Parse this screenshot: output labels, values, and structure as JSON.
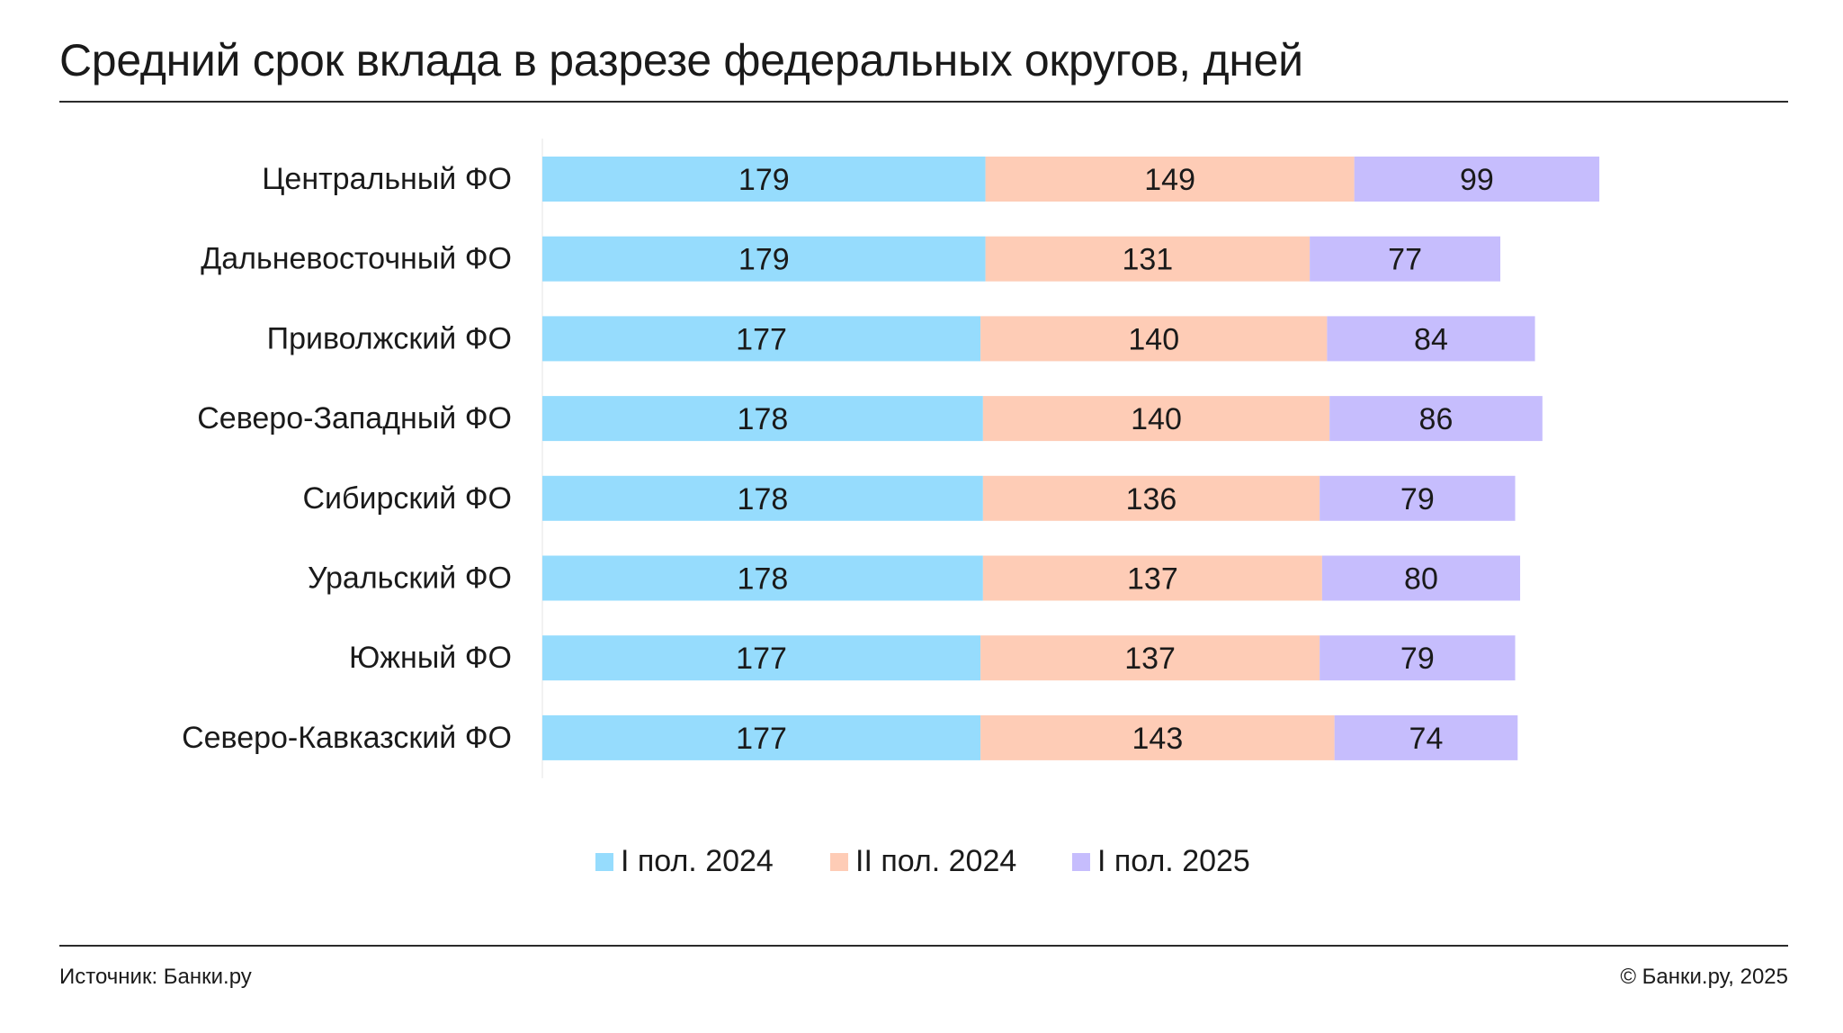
{
  "title": "Средний срок вклада в разрезе федеральных округов, дней",
  "source": "Источник: Банки.ру",
  "copyright": "© Банки.ру, 2025",
  "chart_data": {
    "type": "bar",
    "orientation": "horizontal",
    "stacked": true,
    "title": "Средний срок вклада в разрезе федеральных округов, дней",
    "categories": [
      "Центральный ФО",
      "Дальневосточный ФО",
      "Приволжский ФО",
      "Северо-Западный ФО",
      "Сибирский ФО",
      "Уральский ФО",
      "Южный ФО",
      "Северо-Кавказский ФО"
    ],
    "series": [
      {
        "name": "I пол. 2024",
        "color": "#96DCFD",
        "values": [
          179,
          179,
          177,
          178,
          178,
          178,
          177,
          177
        ]
      },
      {
        "name": "II пол. 2024",
        "color": "#FECCB6",
        "values": [
          149,
          131,
          140,
          140,
          136,
          137,
          137,
          143
        ]
      },
      {
        "name": "I пол. 2025",
        "color": "#C6BDFD",
        "values": [
          99,
          77,
          84,
          86,
          79,
          80,
          79,
          74
        ]
      }
    ],
    "data_labels": true,
    "grid": false,
    "legend_position": "bottom-center"
  }
}
